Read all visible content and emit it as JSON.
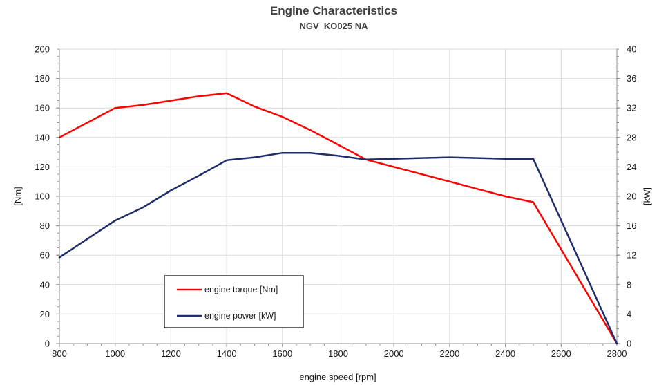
{
  "chart_data": {
    "type": "line",
    "title": "Engine Characteristics",
    "subtitle": "NGV_KO025 NA",
    "xlabel": "engine speed [rpm]",
    "ylabel": "[Nm]",
    "y2label": "[kW]",
    "xlim": [
      800,
      2800
    ],
    "ylim": [
      0,
      200
    ],
    "y2lim": [
      0,
      40
    ],
    "xticks": [
      800,
      1000,
      1200,
      1400,
      1600,
      1800,
      2000,
      2200,
      2400,
      2600,
      2800
    ],
    "yticks": [
      0,
      20,
      40,
      60,
      80,
      100,
      120,
      140,
      160,
      180,
      200
    ],
    "y2ticks": [
      0,
      4,
      8,
      12,
      16,
      20,
      24,
      28,
      32,
      36,
      40
    ],
    "grid": true,
    "legend_position": "bottom-left",
    "series": [
      {
        "name": "engine torque [Nm]",
        "axis": "left",
        "color": "#ff0000",
        "x": [
          800,
          1000,
          1100,
          1200,
          1300,
          1400,
          1500,
          1600,
          1700,
          1800,
          1900,
          2000,
          2100,
          2200,
          2300,
          2400,
          2500,
          2800
        ],
        "y": [
          140,
          160,
          162,
          165,
          168,
          170,
          161,
          154,
          145,
          135,
          125,
          120,
          115,
          110,
          105,
          100,
          96,
          0
        ]
      },
      {
        "name": "engine power [kW]",
        "axis": "right",
        "color": "#1f2d6b",
        "x": [
          800,
          900,
          1000,
          1100,
          1200,
          1300,
          1400,
          1500,
          1600,
          1700,
          1800,
          1900,
          2000,
          2100,
          2200,
          2300,
          2400,
          2500,
          2800
        ],
        "y": [
          11.7,
          14.2,
          16.7,
          18.5,
          20.8,
          22.8,
          24.9,
          25.3,
          25.9,
          25.9,
          25.5,
          25.0,
          25.1,
          25.2,
          25.3,
          25.2,
          25.1,
          25.1,
          0
        ]
      }
    ]
  }
}
